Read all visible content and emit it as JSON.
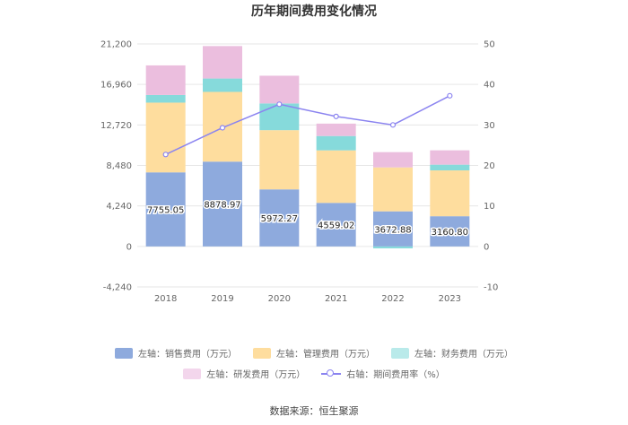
{
  "chart_data": {
    "type": "bar",
    "title": "历年期间费用变化情况",
    "categories": [
      "2018",
      "2019",
      "2020",
      "2021",
      "2022",
      "2023"
    ],
    "left_axis": {
      "ylim": [
        -4240,
        21200
      ],
      "ticks": [
        "-4,240",
        "0",
        "4,240",
        "8,480",
        "12,720",
        "16,960",
        "21,200"
      ],
      "tick_values": [
        -4240,
        0,
        4240,
        8480,
        12720,
        16960,
        21200
      ]
    },
    "right_axis": {
      "ylim": [
        -10,
        50
      ],
      "ticks": [
        "-10",
        "0",
        "10",
        "20",
        "30",
        "40",
        "50"
      ],
      "tick_values": [
        -10,
        0,
        10,
        20,
        30,
        40,
        50
      ]
    },
    "series": [
      {
        "name": "左轴：销售费用（万元）",
        "color": "#8eaadd",
        "values": [
          7755.05,
          8878.97,
          5972.27,
          4559.02,
          3672.88,
          3160.8
        ],
        "labels": [
          "7755.05",
          "8878.97",
          "5972.27",
          "4559.02",
          "3672.88",
          "3160.80"
        ]
      },
      {
        "name": "左轴：管理费用（万元）",
        "color": "#fedd9e",
        "values": [
          7300,
          7300,
          6200,
          5500,
          4600,
          4800
        ]
      },
      {
        "name": "左轴：财务费用（万元）",
        "color": "#86dadb",
        "values": [
          800,
          1400,
          2800,
          1500,
          -200,
          600
        ]
      },
      {
        "name": "左轴：研发费用（万元）",
        "color": "#ebbede",
        "values": [
          3100,
          3400,
          2900,
          1300,
          1600,
          1500
        ]
      }
    ],
    "line_series": {
      "name": "右轴：期间费用率（%）",
      "color": "#8b84f0",
      "values": [
        22.7,
        29.3,
        35.1,
        32.1,
        30.0,
        37.2
      ]
    }
  },
  "source": "数据来源：恒生聚源"
}
